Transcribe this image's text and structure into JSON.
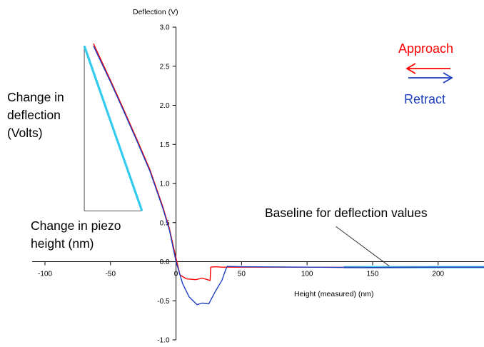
{
  "chart_data": {
    "type": "line",
    "title": "",
    "xlabel": "Height (measured) (nm)",
    "ylabel": "Deflection (V)",
    "xlim": [
      -100,
      235
    ],
    "ylim": [
      -1.0,
      3.0
    ],
    "x_ticks": [
      -100,
      -50,
      0,
      50,
      100,
      150,
      200
    ],
    "x_tick_labels": [
      "-100",
      "-50",
      "0",
      "50",
      "100",
      "150",
      "200"
    ],
    "y_ticks": [
      3.0,
      2.5,
      2.0,
      1.5,
      1.0,
      0.5,
      0.0,
      -0.5,
      -1.0
    ],
    "y_tick_labels": [
      "3.0",
      "2.5",
      "2.0",
      "1.5",
      "1.0",
      "0.5",
      "0.0",
      "-0.5",
      "-1.0"
    ],
    "grid": false,
    "series": [
      {
        "name": "Approach",
        "color": "#ff0000",
        "x": [
          -63,
          -50,
          -40,
          -30,
          -20,
          -10,
          -5,
          -1,
          3,
          8,
          15,
          20,
          26,
          26.5,
          30,
          35,
          50,
          100,
          150,
          200,
          235
        ],
        "y": [
          2.79,
          2.32,
          1.95,
          1.57,
          1.18,
          0.7,
          0.42,
          0.12,
          -0.17,
          -0.22,
          -0.23,
          -0.21,
          -0.24,
          -0.07,
          -0.065,
          -0.07,
          -0.07,
          -0.07,
          -0.075,
          -0.07,
          -0.07
        ]
      },
      {
        "name": "Retract",
        "color": "#1f3fbf",
        "x": [
          -63,
          -50,
          -40,
          -30,
          -20,
          -10,
          -5,
          0,
          5,
          10,
          16,
          20,
          25,
          30,
          35,
          38,
          39,
          50,
          100,
          150,
          200,
          235
        ],
        "y": [
          2.76,
          2.3,
          1.93,
          1.55,
          1.16,
          0.68,
          0.4,
          0.0,
          -0.28,
          -0.45,
          -0.55,
          -0.53,
          -0.54,
          -0.38,
          -0.24,
          -0.1,
          -0.06,
          -0.065,
          -0.07,
          -0.075,
          -0.07,
          -0.07
        ]
      }
    ],
    "annotations": {
      "change_in_deflection": [
        "Change in",
        "deflection",
        "(Volts)"
      ],
      "change_in_piezo": [
        "Change in piezo",
        "height (nm)"
      ],
      "baseline": "Baseline for deflection values"
    },
    "slope_triangle": {
      "color": "#33ccee",
      "hyp_start": [
        -70,
        2.76
      ],
      "hyp_end": [
        -26,
        0.65
      ],
      "vertical_x": -70,
      "horizontal_y": 0.65
    },
    "baseline_segment": {
      "color": "#33ccee",
      "x": [
        128,
        235
      ],
      "y": -0.07,
      "pointer_from": [
        122,
        0.45
      ],
      "pointer_to": [
        163,
        -0.06
      ]
    },
    "legend": {
      "placement": "top-right",
      "approach_label": "Approach",
      "retract_label": "Retract",
      "approach_color": "#ff0000",
      "retract_color": "#1f3fbf"
    }
  }
}
